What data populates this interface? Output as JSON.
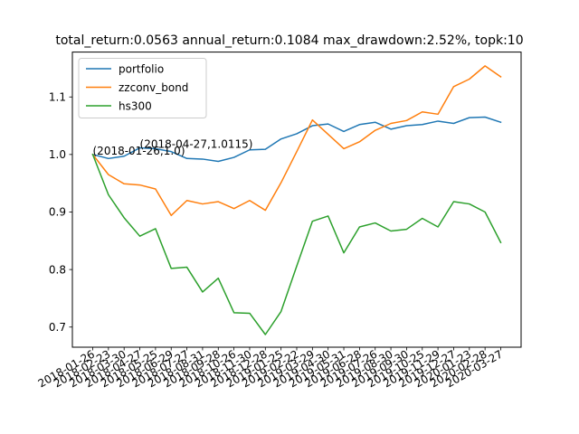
{
  "chart_data": {
    "type": "line",
    "title": "total_return:0.0563  annual_return:0.1084  max_drawdown:2.52%, topk:10",
    "xlabel": "",
    "ylabel": "",
    "categories": [
      "2018-01-26",
      "2018-02-23",
      "2018-03-30",
      "2018-04-27",
      "2018-05-25",
      "2018-06-29",
      "2018-07-27",
      "2018-08-31",
      "2018-09-28",
      "2018-10-26",
      "2018-11-30",
      "2018-12-28",
      "2019-01-25",
      "2019-02-22",
      "2019-03-29",
      "2019-04-30",
      "2019-05-31",
      "2019-06-28",
      "2019-07-26",
      "2019-08-30",
      "2019-09-30",
      "2019-10-25",
      "2019-11-29",
      "2019-12-27",
      "2020-01-23",
      "2020-02-28",
      "2020-03-27"
    ],
    "series": [
      {
        "name": "portfolio",
        "color": "#1f77b4",
        "values": [
          1.0,
          0.993,
          0.997,
          1.0115,
          1.01,
          1.005,
          0.993,
          0.992,
          0.988,
          0.995,
          1.008,
          1.009,
          1.027,
          1.036,
          1.05,
          1.053,
          1.04,
          1.052,
          1.056,
          1.044,
          1.05,
          1.052,
          1.058,
          1.054,
          1.064,
          1.065,
          1.056
        ]
      },
      {
        "name": "zzconv_bond",
        "color": "#ff7f0e",
        "values": [
          1.0,
          0.965,
          0.949,
          0.947,
          0.94,
          0.894,
          0.92,
          0.914,
          0.918,
          0.906,
          0.92,
          0.903,
          0.951,
          1.005,
          1.06,
          1.035,
          1.01,
          1.022,
          1.042,
          1.054,
          1.059,
          1.074,
          1.07,
          1.118,
          1.131,
          1.154,
          1.135
        ]
      },
      {
        "name": "hs300",
        "color": "#2ca02c",
        "values": [
          1.0,
          0.93,
          0.89,
          0.858,
          0.871,
          0.802,
          0.804,
          0.761,
          0.785,
          0.725,
          0.724,
          0.687,
          0.727,
          0.806,
          0.884,
          0.893,
          0.829,
          0.874,
          0.881,
          0.867,
          0.87,
          0.889,
          0.874,
          0.918,
          0.914,
          0.9,
          0.847
        ]
      }
    ],
    "ylim": [
      0.665,
      1.178
    ],
    "yticks": [
      0.7,
      0.8,
      0.9,
      1.0,
      1.1
    ],
    "ytick_labels": [
      "0.7",
      "0.8",
      "0.9",
      "1.0",
      "1.1"
    ],
    "grid": false,
    "legend_position": "top-left",
    "annotations": [
      {
        "text": "(2018-01-26,1.0)",
        "category": "2018-01-26",
        "y": 1.0
      },
      {
        "text": "(2018-04-27,1.0115)",
        "category": "2018-04-27",
        "y": 1.0115
      }
    ]
  }
}
